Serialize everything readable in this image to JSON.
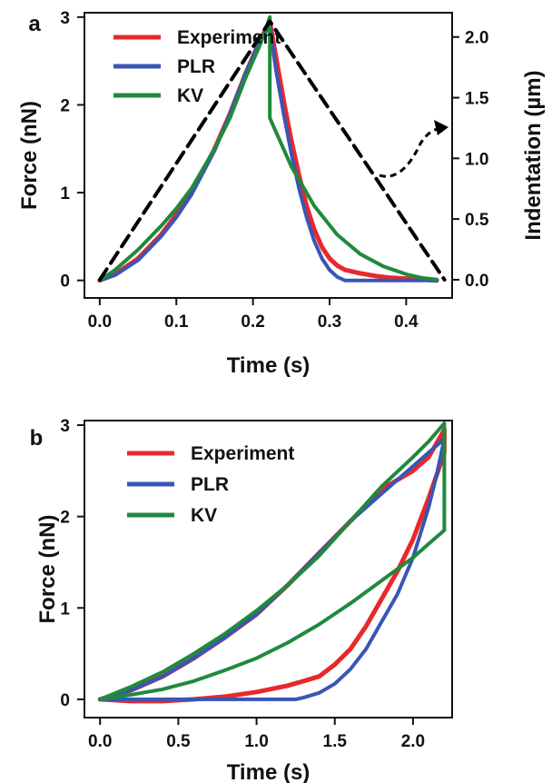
{
  "colors": {
    "experiment": "#e8282b",
    "plr": "#3a55b4",
    "kv": "#1f8a3c",
    "indentation": "#000000",
    "axis": "#111111"
  },
  "chart_data": [
    {
      "panel_label": "a",
      "type": "line",
      "xlabel": "Time (s)",
      "ylabel": "Force (nN)",
      "y2label": "Indentation (µm)",
      "xlim": [
        -0.02,
        0.46
      ],
      "ylim": [
        -0.2,
        3.05
      ],
      "y2lim": [
        -0.15,
        2.2
      ],
      "xticks": [
        "0.0",
        "0.1",
        "0.2",
        "0.3",
        "0.4"
      ],
      "xtick_values": [
        0.0,
        0.1,
        0.2,
        0.3,
        0.4
      ],
      "yticks": [
        "0",
        "1",
        "2",
        "3"
      ],
      "ytick_values": [
        0,
        1,
        2,
        3
      ],
      "y2ticks": [
        "0.0",
        "0.5",
        "1.0",
        "1.5",
        "2.0"
      ],
      "y2tick_values": [
        0.0,
        0.5,
        1.0,
        1.5,
        2.0
      ],
      "legend": [
        "Experiment",
        "PLR",
        "KV"
      ],
      "legend_position": "top-left",
      "series": [
        {
          "name": "Experiment",
          "x": [
            0.0,
            0.02,
            0.05,
            0.08,
            0.1,
            0.12,
            0.15,
            0.17,
            0.19,
            0.2,
            0.21,
            0.222,
            0.23,
            0.24,
            0.25,
            0.26,
            0.27,
            0.28,
            0.29,
            0.3,
            0.31,
            0.32,
            0.34,
            0.36,
            0.38,
            0.4,
            0.42,
            0.44
          ],
          "y": [
            0.0,
            0.07,
            0.25,
            0.52,
            0.75,
            1.0,
            1.5,
            1.9,
            2.35,
            2.55,
            2.75,
            2.95,
            2.55,
            2.05,
            1.6,
            1.2,
            0.85,
            0.58,
            0.38,
            0.25,
            0.17,
            0.12,
            0.08,
            0.05,
            0.03,
            0.02,
            0.01,
            0.0
          ]
        },
        {
          "name": "PLR",
          "x": [
            0.0,
            0.02,
            0.05,
            0.08,
            0.1,
            0.12,
            0.15,
            0.17,
            0.19,
            0.2,
            0.21,
            0.222,
            0.23,
            0.24,
            0.25,
            0.26,
            0.27,
            0.28,
            0.29,
            0.3,
            0.31,
            0.32,
            0.33,
            0.36,
            0.4,
            0.44
          ],
          "y": [
            0.0,
            0.06,
            0.23,
            0.5,
            0.72,
            0.98,
            1.48,
            1.9,
            2.35,
            2.55,
            2.75,
            2.9,
            2.4,
            1.9,
            1.45,
            1.05,
            0.72,
            0.45,
            0.25,
            0.12,
            0.04,
            0.0,
            0.0,
            0.0,
            0.0,
            0.0
          ]
        },
        {
          "name": "KV",
          "x": [
            0.0,
            0.02,
            0.05,
            0.08,
            0.1,
            0.12,
            0.15,
            0.17,
            0.19,
            0.2,
            0.21,
            0.222,
            0.222,
            0.25,
            0.28,
            0.31,
            0.34,
            0.37,
            0.4,
            0.42,
            0.44
          ],
          "y": [
            0.0,
            0.12,
            0.35,
            0.62,
            0.82,
            1.05,
            1.5,
            1.85,
            2.3,
            2.5,
            2.7,
            3.0,
            1.85,
            1.3,
            0.85,
            0.52,
            0.3,
            0.16,
            0.07,
            0.03,
            0.01
          ]
        },
        {
          "name": "Indentation",
          "axis": "right",
          "dashed": true,
          "x": [
            0.0,
            0.222,
            0.45
          ],
          "y": [
            0.0,
            2.13,
            0.0
          ]
        }
      ]
    },
    {
      "panel_label": "b",
      "type": "line",
      "xlabel": "Time (s)",
      "ylabel": "Force (nN)",
      "xlim": [
        -0.1,
        2.25
      ],
      "ylim": [
        -0.2,
        3.05
      ],
      "xticks": [
        "0.0",
        "0.5",
        "1.0",
        "1.5",
        "2.0"
      ],
      "xtick_values": [
        0.0,
        0.5,
        1.0,
        1.5,
        2.0
      ],
      "yticks": [
        "0",
        "1",
        "2",
        "3"
      ],
      "ytick_values": [
        0,
        1,
        2,
        3
      ],
      "legend": [
        "Experiment",
        "PLR",
        "KV"
      ],
      "legend_position": "top-left",
      "series": [
        {
          "name": "Experiment",
          "x": [
            0.0,
            0.2,
            0.4,
            0.6,
            0.8,
            1.0,
            1.2,
            1.4,
            1.6,
            1.8,
            2.0,
            2.1,
            2.2,
            2.2,
            2.15,
            2.1,
            2.0,
            1.9,
            1.8,
            1.7,
            1.6,
            1.5,
            1.4,
            1.3,
            1.2,
            1.0,
            0.8,
            0.6,
            0.4,
            0.2,
            0.0
          ],
          "y": [
            0.0,
            0.1,
            0.25,
            0.45,
            0.68,
            0.93,
            1.25,
            1.6,
            1.95,
            2.3,
            2.5,
            2.65,
            2.95,
            2.7,
            2.45,
            2.2,
            1.75,
            1.4,
            1.1,
            0.8,
            0.55,
            0.38,
            0.25,
            0.2,
            0.15,
            0.08,
            0.03,
            0.0,
            -0.02,
            -0.02,
            0.0
          ]
        },
        {
          "name": "PLR",
          "x": [
            0.0,
            0.2,
            0.4,
            0.6,
            0.8,
            1.0,
            1.2,
            1.4,
            1.6,
            1.8,
            2.0,
            2.1,
            2.2,
            2.2,
            2.15,
            2.1,
            2.0,
            1.9,
            1.8,
            1.7,
            1.6,
            1.5,
            1.4,
            1.3,
            1.25,
            1.0,
            0.5,
            0.0
          ],
          "y": [
            0.0,
            0.1,
            0.25,
            0.45,
            0.68,
            0.93,
            1.25,
            1.6,
            1.95,
            2.25,
            2.55,
            2.7,
            2.85,
            2.85,
            2.45,
            2.1,
            1.55,
            1.15,
            0.85,
            0.55,
            0.33,
            0.17,
            0.07,
            0.02,
            0.0,
            0.0,
            0.0,
            0.0
          ]
        },
        {
          "name": "KV",
          "x": [
            0.0,
            0.2,
            0.4,
            0.6,
            0.8,
            1.0,
            1.2,
            1.4,
            1.6,
            1.8,
            2.0,
            2.1,
            2.2,
            2.2,
            2.1,
            2.0,
            1.8,
            1.6,
            1.4,
            1.2,
            1.0,
            0.8,
            0.6,
            0.4,
            0.2,
            0.0
          ],
          "y": [
            0.0,
            0.14,
            0.3,
            0.5,
            0.72,
            0.97,
            1.25,
            1.57,
            1.95,
            2.33,
            2.65,
            2.82,
            3.02,
            1.85,
            1.7,
            1.55,
            1.3,
            1.05,
            0.82,
            0.62,
            0.45,
            0.32,
            0.2,
            0.11,
            0.05,
            0.0
          ]
        }
      ]
    }
  ]
}
